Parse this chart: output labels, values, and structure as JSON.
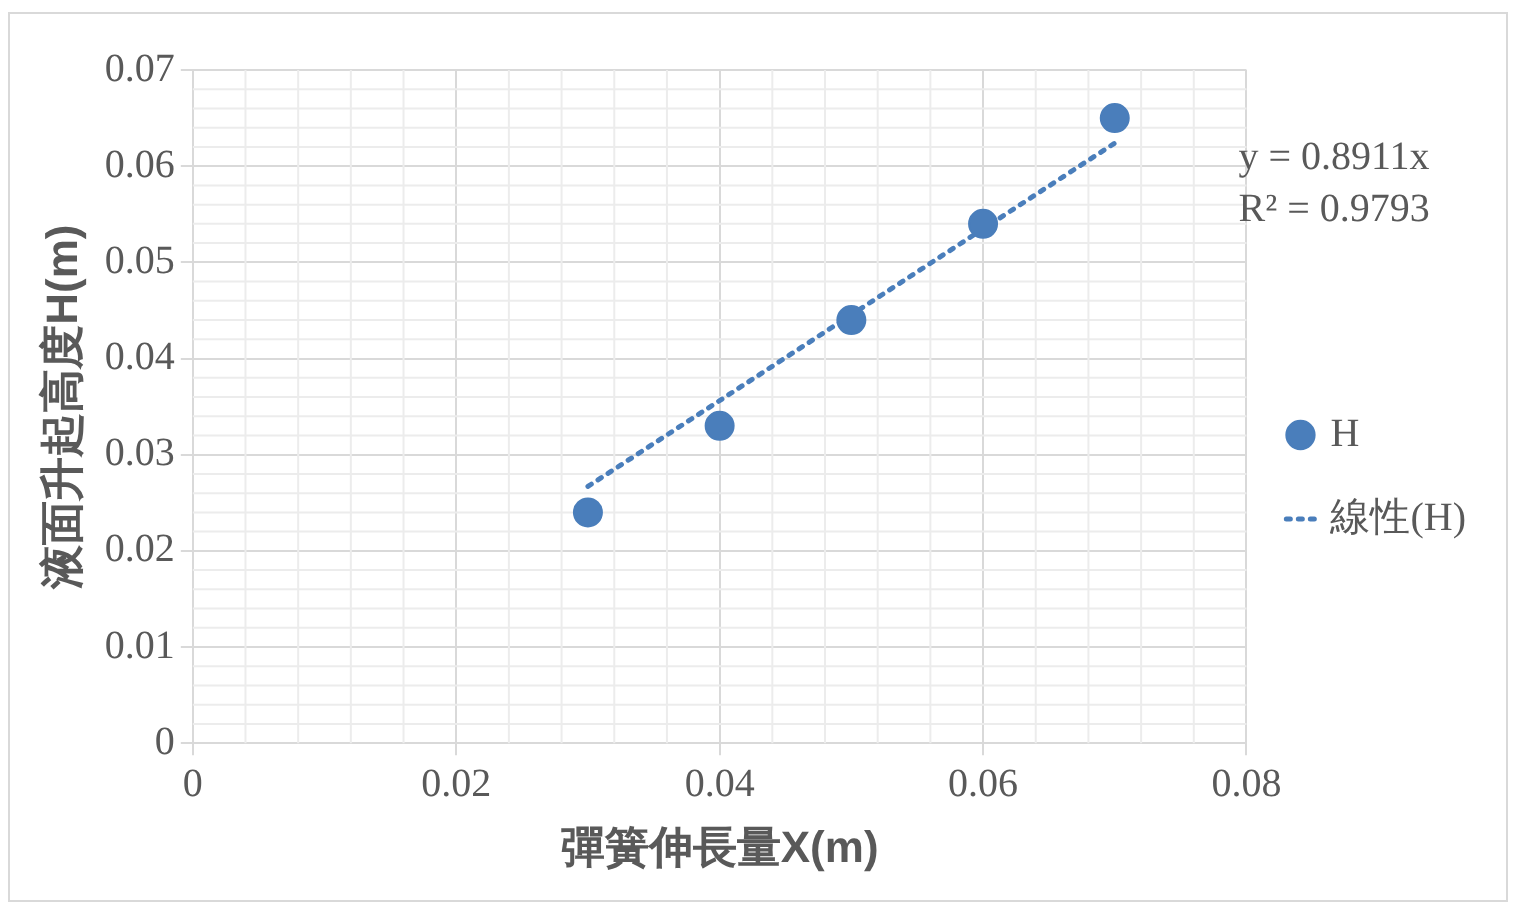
{
  "chart_data": {
    "type": "scatter",
    "xlabel": "彈簧伸長量X(m)",
    "ylabel": "液面升起高度H(m)",
    "xlim": [
      0,
      0.08
    ],
    "xticks": [
      0,
      0.02,
      0.04,
      0.06,
      0.08
    ],
    "ylim": [
      0,
      0.07
    ],
    "yticks": [
      0,
      0.01,
      0.02,
      0.03,
      0.04,
      0.05,
      0.06,
      0.07
    ],
    "grid": true,
    "legend": "right",
    "annotations": [
      "y = 0.8911x",
      "R² = 0.9793"
    ],
    "series": [
      {
        "name": "H",
        "color": "#4a7ebb",
        "marker": "circle",
        "x": [
          0.03,
          0.04,
          0.05,
          0.06,
          0.07
        ],
        "values": [
          0.024,
          0.033,
          0.044,
          0.054,
          0.065
        ]
      },
      {
        "name": "線性(H)",
        "type": "line",
        "color": "#4a7ebb",
        "marker": "none",
        "line_style": "dotted",
        "x": [
          0.03,
          0.07
        ],
        "values": [
          0.0267,
          0.0624
        ]
      }
    ]
  }
}
